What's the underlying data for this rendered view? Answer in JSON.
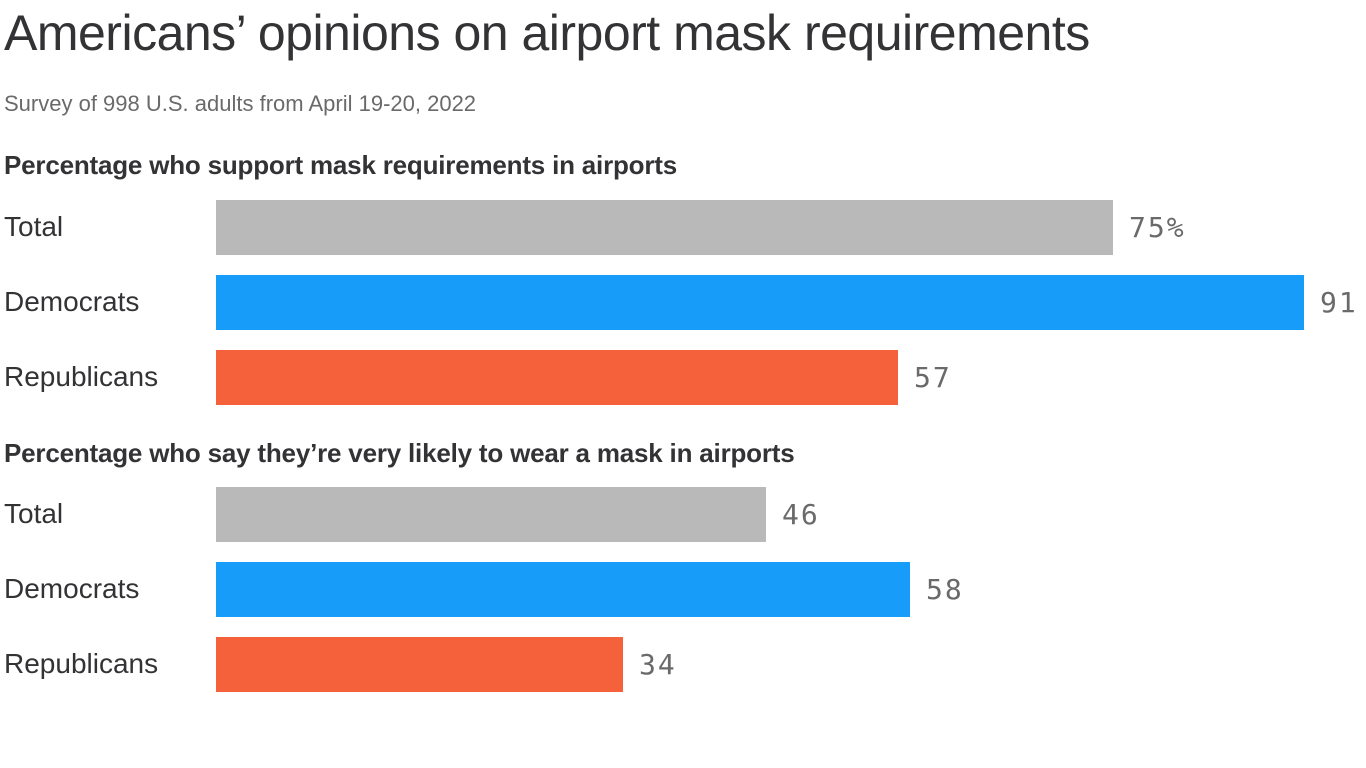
{
  "page": {
    "title": "Americans’ opinions on airport mask requirements",
    "subtitle": "Survey of 998 U.S. adults from April 19-20, 2022"
  },
  "colors": {
    "total_bar": "#b9b9b9",
    "democrats_bar": "#189cf9",
    "republicans_bar": "#f4613a",
    "heading_text": "#333336",
    "muted_text": "#6a6a6a"
  },
  "chart_data": [
    {
      "type": "bar",
      "orientation": "horizontal",
      "title": "Percentage who support mask requirements in airports",
      "categories": [
        "Total",
        "Democrats",
        "Republicans"
      ],
      "values": [
        75,
        91,
        57
      ],
      "value_labels": [
        "75%",
        "91",
        "57"
      ],
      "bar_colors": [
        "#b9b9b9",
        "#189cf9",
        "#f4613a"
      ],
      "xlim": [
        0,
        100
      ],
      "grid": false,
      "legend": false,
      "value_label_position": "right-of-bar"
    },
    {
      "type": "bar",
      "orientation": "horizontal",
      "title": "Percentage who say they’re very likely to wear a mask in airports",
      "categories": [
        "Total",
        "Democrats",
        "Republicans"
      ],
      "values": [
        46,
        58,
        34
      ],
      "value_labels": [
        "46",
        "58",
        "34"
      ],
      "bar_colors": [
        "#b9b9b9",
        "#189cf9",
        "#f4613a"
      ],
      "xlim": [
        0,
        100
      ],
      "grid": false,
      "legend": false,
      "value_label_position": "right-of-bar"
    }
  ]
}
